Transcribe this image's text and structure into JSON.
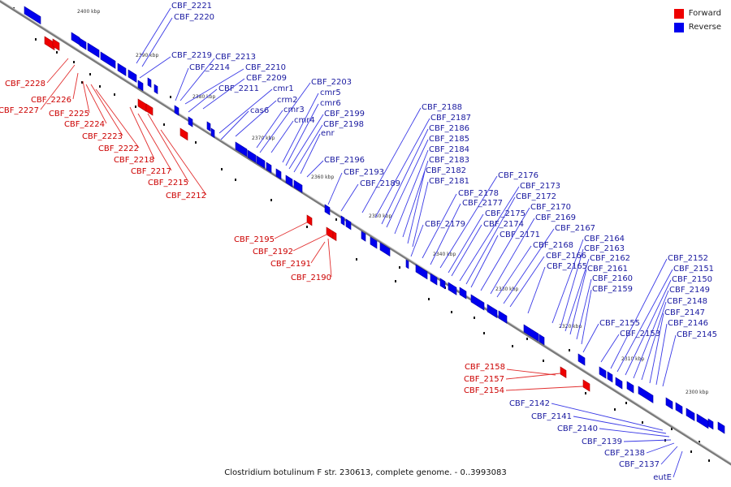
{
  "legend": {
    "forward_label": "Forward",
    "reverse_label": "Reverse",
    "forward_color": "#ee0000",
    "reverse_color": "#0000ee"
  },
  "caption": "Clostridium botulinum F str. 230613, complete genome. - 0..3993083",
  "scale": {
    "unit": "kbp",
    "ticks": [
      2400,
      2390,
      2380,
      2370,
      2360,
      2350,
      2340,
      2330,
      2320,
      2310,
      2300
    ]
  },
  "forward_genes": [
    "CBF_2228",
    "CBF_2227",
    "CBF_2226",
    "CBF_2225",
    "CBF_2224",
    "CBF_2223",
    "CBF_2222",
    "CBF_2218",
    "CBF_2217",
    "CBF_2215",
    "CBF_2212",
    "CBF_2195",
    "CBF_2192",
    "CBF_2191",
    "CBF_2190",
    "CBF_2158",
    "CBF_2157",
    "CBF_2154"
  ],
  "reverse_genes": [
    "CBF_2221",
    "CBF_2220",
    "CBF_2219",
    "CBF_2214",
    "CBF_2213",
    "CBF_2210",
    "CBF_2209",
    "CBF_2211",
    "cmr1",
    "crm2",
    "cas6",
    "cmr3",
    "cmr4",
    "CBF_2203",
    "cmr5",
    "cmr6",
    "CBF_2199",
    "CBF_2198",
    "enr",
    "CBF_2196",
    "CBF_2193",
    "CBF_2189",
    "CBF_2188",
    "CBF_2187",
    "CBF_2186",
    "CBF_2185",
    "CBF_2184",
    "CBF_2183",
    "CBF_2182",
    "CBF_2181",
    "CBF_2179",
    "CBF_2178",
    "CBF_2177",
    "CBF_2176",
    "CBF_2175",
    "CBF_2174",
    "CBF_2173",
    "CBF_2172",
    "CBF_2171",
    "CBF_2170",
    "CBF_2169",
    "CBF_2168",
    "CBF_2167",
    "CBF_2166",
    "CBF_2165",
    "CBF_2164",
    "CBF_2163",
    "CBF_2162",
    "CBF_2161",
    "CBF_2160",
    "CBF_2159",
    "CBF_2155",
    "CBF_2153",
    "CBF_2152",
    "CBF_2151",
    "CBF_2150",
    "CBF_2149",
    "CBF_2148",
    "CBF_2147",
    "CBF_2146",
    "CBF_2145",
    "CBF_2142",
    "CBF_2141",
    "CBF_2140",
    "CBF_2139",
    "CBF_2138",
    "CBF_2137",
    "eutE"
  ]
}
